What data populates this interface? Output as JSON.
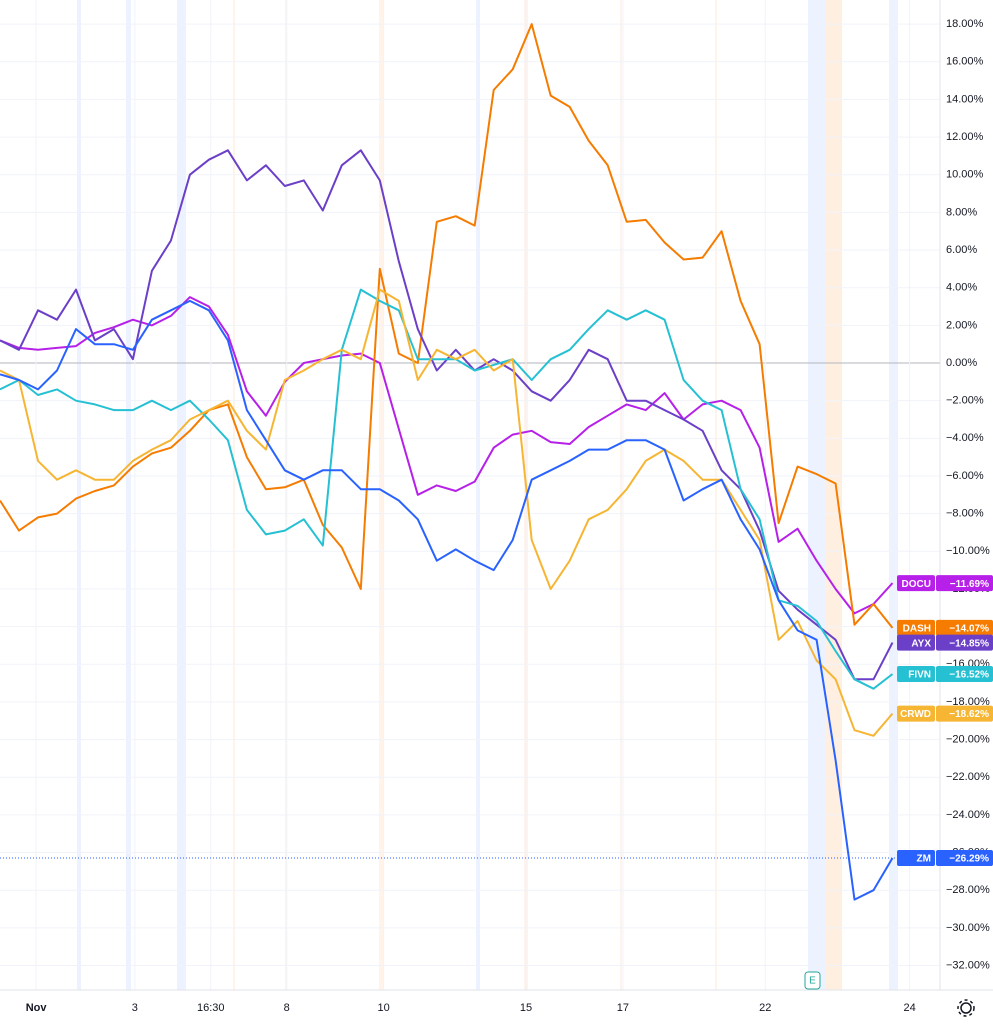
{
  "chart_data": {
    "type": "line",
    "x": [
      0,
      1,
      2,
      3,
      4,
      5,
      6,
      7,
      8,
      9,
      10,
      11,
      12,
      13,
      14,
      15,
      16,
      17,
      18,
      19,
      20,
      21,
      22,
      23,
      24,
      25,
      26,
      27,
      28,
      29,
      30,
      31,
      32,
      33,
      34,
      35,
      36,
      37,
      38,
      39,
      40,
      41,
      42,
      43,
      44,
      45,
      46,
      47
    ],
    "xlim": [
      0,
      49.5
    ],
    "xticks": [
      {
        "value": 1.9,
        "label": "Nov"
      },
      {
        "value": 7.1,
        "label": "3"
      },
      {
        "value": 11.1,
        "label": "16:30"
      },
      {
        "value": 15.1,
        "label": "8"
      },
      {
        "value": 20.2,
        "label": "10"
      },
      {
        "value": 27.7,
        "label": "15"
      },
      {
        "value": 32.8,
        "label": "17"
      },
      {
        "value": 40.3,
        "label": "22"
      },
      {
        "value": 47.9,
        "label": "24"
      }
    ],
    "ylim": [
      -33.3,
      19.28
    ],
    "yticks": [
      {
        "value": 18,
        "label": "18.00%"
      },
      {
        "value": 16,
        "label": "16.00%"
      },
      {
        "value": 14,
        "label": "14.00%"
      },
      {
        "value": 12,
        "label": "12.00%"
      },
      {
        "value": 10,
        "label": "10.00%"
      },
      {
        "value": 8,
        "label": "8.00%"
      },
      {
        "value": 6,
        "label": "6.00%"
      },
      {
        "value": 4,
        "label": "4.00%"
      },
      {
        "value": 2,
        "label": "2.00%"
      },
      {
        "value": 0,
        "label": "0.00%"
      },
      {
        "value": -2,
        "label": "−2.00%"
      },
      {
        "value": -4,
        "label": "−4.00%"
      },
      {
        "value": -6,
        "label": "−6.00%"
      },
      {
        "value": -8,
        "label": "−8.00%"
      },
      {
        "value": -10,
        "label": "−10.00%"
      },
      {
        "value": -12,
        "label": "−12.00%"
      },
      {
        "value": -14,
        "label": "−14.00%"
      },
      {
        "value": -16,
        "label": "−16.00%"
      },
      {
        "value": -18,
        "label": "−18.00%"
      },
      {
        "value": -20,
        "label": "−20.00%"
      },
      {
        "value": -22,
        "label": "−22.00%"
      },
      {
        "value": -24,
        "label": "−24.00%"
      },
      {
        "value": -26,
        "label": "−26.00%"
      },
      {
        "value": -28,
        "label": "−28.00%"
      },
      {
        "value": -30,
        "label": "−30.00%"
      },
      {
        "value": -32,
        "label": "−32.00%"
      }
    ],
    "grid": true,
    "series": [
      {
        "name": "DOCU",
        "color": "#b620e8",
        "last_label": "−11.69%",
        "values": [
          1.2,
          0.8,
          0.7,
          0.8,
          0.9,
          1.6,
          1.9,
          2.3,
          2.0,
          2.5,
          3.5,
          3.0,
          1.5,
          -1.5,
          -2.8,
          -1.0,
          0.0,
          0.2,
          0.4,
          0.5,
          0.0,
          -3.5,
          -7.0,
          -6.5,
          -6.8,
          -6.3,
          -4.5,
          -3.8,
          -3.6,
          -4.2,
          -4.3,
          -3.4,
          -2.8,
          -2.2,
          -2.5,
          -1.6,
          -3.0,
          -2.2,
          -2.0,
          -2.5,
          -4.5,
          -9.5,
          -8.8,
          -10.5,
          -12.0,
          -13.3,
          -12.8,
          -11.69
        ]
      },
      {
        "name": "DASH",
        "color": "#f57c00",
        "last_label": "−14.07%",
        "values": [
          -7.3,
          -8.9,
          -8.2,
          -8.0,
          -7.2,
          -6.8,
          -6.5,
          -5.5,
          -4.8,
          -4.5,
          -3.6,
          -2.5,
          -2.2,
          -5.0,
          -6.7,
          -6.6,
          -6.2,
          -8.6,
          -9.8,
          -12.0,
          5.0,
          0.5,
          0.0,
          7.5,
          7.8,
          7.3,
          14.5,
          15.6,
          18.0,
          14.2,
          13.6,
          11.8,
          10.5,
          7.5,
          7.6,
          6.4,
          5.5,
          5.6,
          7.0,
          3.3,
          1.0,
          -8.5,
          -5.5,
          -5.9,
          -6.4,
          -13.9,
          -12.8,
          -14.07
        ]
      },
      {
        "name": "AYX",
        "color": "#6b3fc7",
        "last_label": "−14.85%",
        "values": [
          1.2,
          0.7,
          2.8,
          2.3,
          3.9,
          1.2,
          1.8,
          0.2,
          4.9,
          6.5,
          10.0,
          10.8,
          11.3,
          9.7,
          10.5,
          9.4,
          9.7,
          8.1,
          10.5,
          11.3,
          9.7,
          5.4,
          1.8,
          -0.4,
          0.7,
          -0.4,
          0.2,
          -0.4,
          -1.5,
          -2.0,
          -0.9,
          0.7,
          0.2,
          -2.0,
          -2.0,
          -2.5,
          -3.0,
          -3.6,
          -5.7,
          -6.7,
          -8.9,
          -12.1,
          -13.1,
          -13.9,
          -14.7,
          -16.8,
          -16.8,
          -14.85
        ]
      },
      {
        "name": "FIVN",
        "color": "#26c0d3",
        "last_label": "−16.52%",
        "values": [
          -1.4,
          -0.9,
          -1.7,
          -1.4,
          -2.0,
          -2.2,
          -2.5,
          -2.5,
          -2.0,
          -2.5,
          -2.0,
          -3.0,
          -4.1,
          -7.8,
          -9.1,
          -8.9,
          -8.3,
          -9.7,
          0.7,
          3.9,
          3.3,
          2.8,
          0.2,
          0.2,
          0.2,
          -0.4,
          -0.1,
          0.2,
          -0.9,
          0.2,
          0.7,
          1.8,
          2.8,
          2.3,
          2.8,
          2.3,
          -0.9,
          -2.0,
          -2.5,
          -6.7,
          -8.3,
          -12.6,
          -12.9,
          -13.7,
          -15.3,
          -16.8,
          -17.3,
          -16.52
        ]
      },
      {
        "name": "CRWD",
        "color": "#f6b532",
        "last_label": "−18.62%",
        "values": [
          -0.4,
          -0.9,
          -5.2,
          -6.2,
          -5.7,
          -6.2,
          -6.2,
          -5.2,
          -4.6,
          -4.1,
          -3.0,
          -2.5,
          -2.0,
          -3.6,
          -4.6,
          -0.9,
          -0.4,
          0.2,
          0.7,
          0.2,
          3.9,
          3.3,
          -0.9,
          0.7,
          0.2,
          0.7,
          -0.4,
          0.2,
          -9.4,
          -12.0,
          -10.5,
          -8.3,
          -7.8,
          -6.7,
          -5.2,
          -4.6,
          -5.2,
          -6.2,
          -6.2,
          -7.8,
          -9.4,
          -14.7,
          -13.7,
          -15.8,
          -16.8,
          -19.5,
          -19.8,
          -18.62
        ]
      },
      {
        "name": "ZM",
        "color": "#2962ff",
        "last_label": "−26.29%",
        "values": [
          -0.6,
          -0.9,
          -1.4,
          -0.4,
          1.8,
          1.0,
          1.0,
          0.7,
          2.3,
          2.8,
          3.3,
          2.8,
          1.2,
          -2.5,
          -4.1,
          -5.7,
          -6.2,
          -5.7,
          -5.7,
          -6.7,
          -6.7,
          -7.3,
          -8.3,
          -10.5,
          -9.9,
          -10.5,
          -11.0,
          -9.4,
          -6.2,
          -5.7,
          -5.2,
          -4.6,
          -4.6,
          -4.1,
          -4.1,
          -4.6,
          -7.3,
          -6.7,
          -6.2,
          -8.3,
          -9.9,
          -12.6,
          -14.2,
          -14.7,
          -21.1,
          -28.5,
          -28.0,
          -26.29
        ]
      }
    ]
  }
}
